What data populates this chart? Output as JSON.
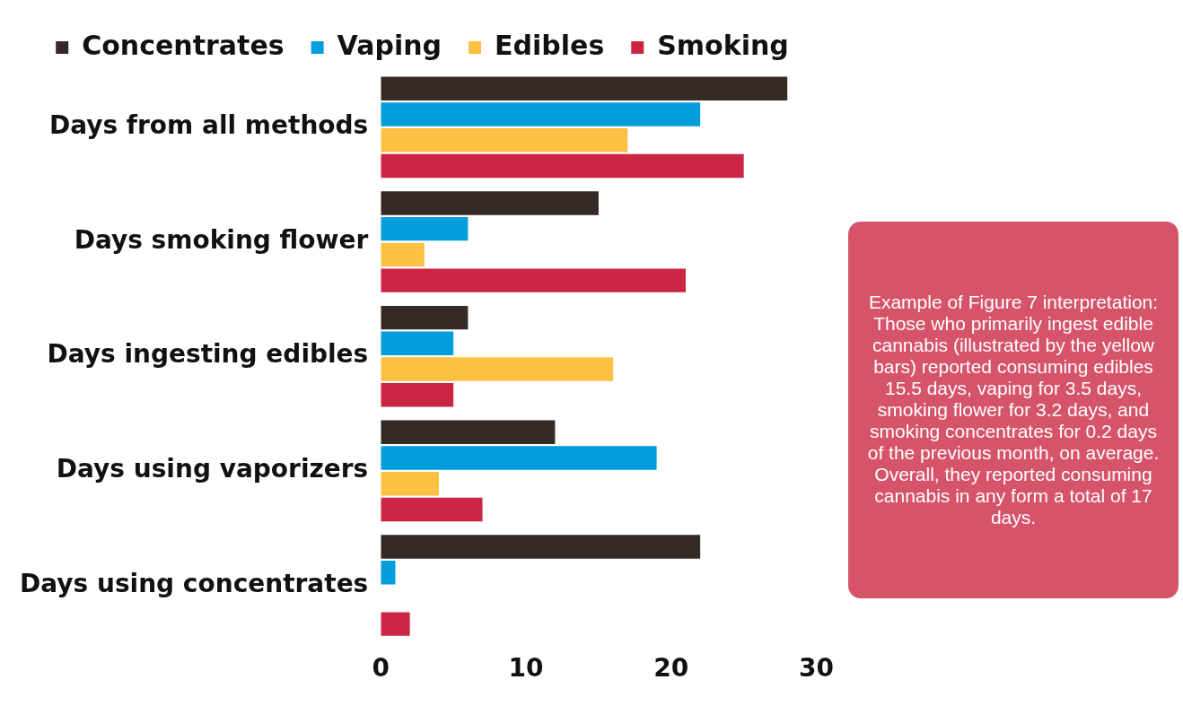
{
  "chart_data": {
    "type": "bar",
    "orientation": "horizontal",
    "categories": [
      "Days from all methods",
      "Days smoking flower",
      "Days ingesting edibles",
      "Days using vaporizers",
      "Days using concentrates"
    ],
    "series": [
      {
        "name": "Concentrates",
        "color": "#352a25",
        "values": [
          28,
          15,
          6,
          12,
          22
        ]
      },
      {
        "name": "Vaping",
        "color": "#029ddc",
        "values": [
          22,
          6,
          5,
          19,
          1
        ]
      },
      {
        "name": "Edibles",
        "color": "#fec043",
        "values": [
          17,
          3,
          16,
          4,
          0
        ]
      },
      {
        "name": "Smoking",
        "color": "#cc2544",
        "values": [
          25,
          21,
          5,
          7,
          2
        ]
      }
    ],
    "xlim": [
      0,
      30
    ],
    "xticks": [
      0,
      10,
      20,
      30
    ],
    "grid": false,
    "legend": "top",
    "annotations": [
      "Example of Figure 7 interpretation: Those who primarily ingest edible cannabis (illustrated by the yellow bars) reported consuming edibles 15.5 days, vaping for 3.5 days, smoking flower for 3.2 days, and smoking concentrates for 0.2 days of the previous month, on average. Overall, they reported consuming cannabis in any form a total of 17 days."
    ]
  }
}
